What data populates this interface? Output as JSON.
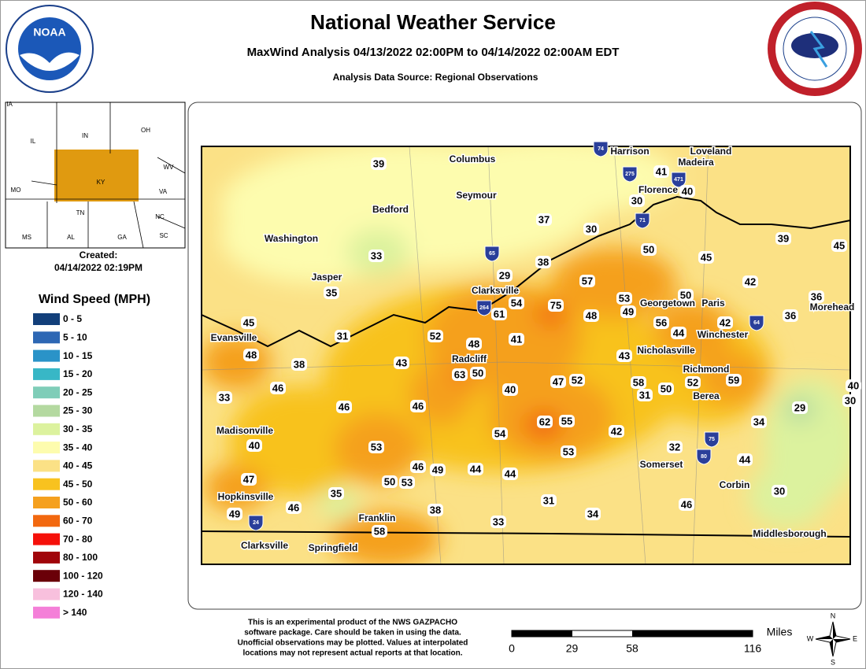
{
  "header": {
    "title": "National Weather Service",
    "subtitle": "MaxWind Analysis 04/13/2022 02:00PM to 04/14/2022 02:00AM EDT",
    "source": "Analysis Data Source: Regional Observations",
    "noaa": "NOAA"
  },
  "inset": {
    "states": [
      "IA",
      "IL",
      "IN",
      "OH",
      "MO",
      "KY",
      "WV",
      "VA",
      "TN",
      "NC",
      "MS",
      "AL",
      "GA",
      "SC"
    ]
  },
  "created": {
    "label": "Created:",
    "time": "04/14/2022 02:19PM"
  },
  "legend": {
    "title": "Wind Speed (MPH)",
    "items": [
      {
        "label": "0 - 5",
        "color": "#123f7a"
      },
      {
        "label": "5 - 10",
        "color": "#2d67b4"
      },
      {
        "label": "10 - 15",
        "color": "#2a93c8"
      },
      {
        "label": "15 - 20",
        "color": "#38b7c6"
      },
      {
        "label": "20 - 25",
        "color": "#7fcdb8"
      },
      {
        "label": "25 - 30",
        "color": "#b4d9a0"
      },
      {
        "label": "30 - 35",
        "color": "#dcf29e"
      },
      {
        "label": "35 - 40",
        "color": "#fdfcae"
      },
      {
        "label": "40 - 45",
        "color": "#fbe186"
      },
      {
        "label": "45 - 50",
        "color": "#f8c21f"
      },
      {
        "label": "50 - 60",
        "color": "#f5a01e"
      },
      {
        "label": "60 - 70",
        "color": "#f2680f"
      },
      {
        "label": "70 - 80",
        "color": "#f5100a"
      },
      {
        "label": "80 - 100",
        "color": "#a0050a"
      },
      {
        "label": "100 - 120",
        "color": "#6a0008"
      },
      {
        "label": "120 - 140",
        "color": "#f8c0dd"
      },
      {
        "label": "> 140",
        "color": "#f47fd8"
      }
    ]
  },
  "cities": [
    "Columbus",
    "Harrison",
    "Loveland",
    "Madeira",
    "Florence",
    "Seymour",
    "Bedford",
    "Washington",
    "Jasper",
    "Clarksville",
    "Georgetown",
    "Paris",
    "Morehead",
    "Evansville",
    "Winchester",
    "Nicholasville",
    "Radcliff",
    "Richmond",
    "Berea",
    "Madisonville",
    "Somerset",
    "Corbin",
    "Hopkinsville",
    "Franklin",
    "Middlesborough",
    "Clarksville",
    "Springfield"
  ],
  "shields": [
    "74",
    "275",
    "471",
    "71",
    "65",
    "264",
    "64",
    "75",
    "80",
    "24"
  ],
  "stations": [
    39,
    37,
    30,
    41,
    40,
    30,
    39,
    45,
    33,
    38,
    50,
    45,
    29,
    57,
    42,
    35,
    61,
    54,
    75,
    53,
    50,
    36,
    48,
    49,
    56,
    42,
    36,
    45,
    31,
    52,
    48,
    41,
    44,
    43,
    48,
    38,
    43,
    63,
    50,
    47,
    52,
    58,
    50,
    52,
    59,
    40,
    30,
    46,
    33,
    40,
    31,
    46,
    46,
    29,
    62,
    55,
    34,
    42,
    54,
    40,
    53,
    53,
    32,
    44,
    46,
    49,
    44,
    44,
    50,
    53,
    47,
    35,
    30,
    31,
    46,
    46,
    49,
    38,
    34,
    33,
    58
  ],
  "footer": {
    "disclaimer": [
      "This is an experimental product of the NWS GAZPACHO",
      "software package. Care should be taken in using the data.",
      "Unofficial observations may be plotted. Values at interpolated",
      "locations may not represent actual reports at that location."
    ],
    "scale_unit": "Miles",
    "scale_ticks": [
      0,
      29,
      58,
      116
    ],
    "compass": [
      "N",
      "E",
      "S",
      "W"
    ]
  }
}
